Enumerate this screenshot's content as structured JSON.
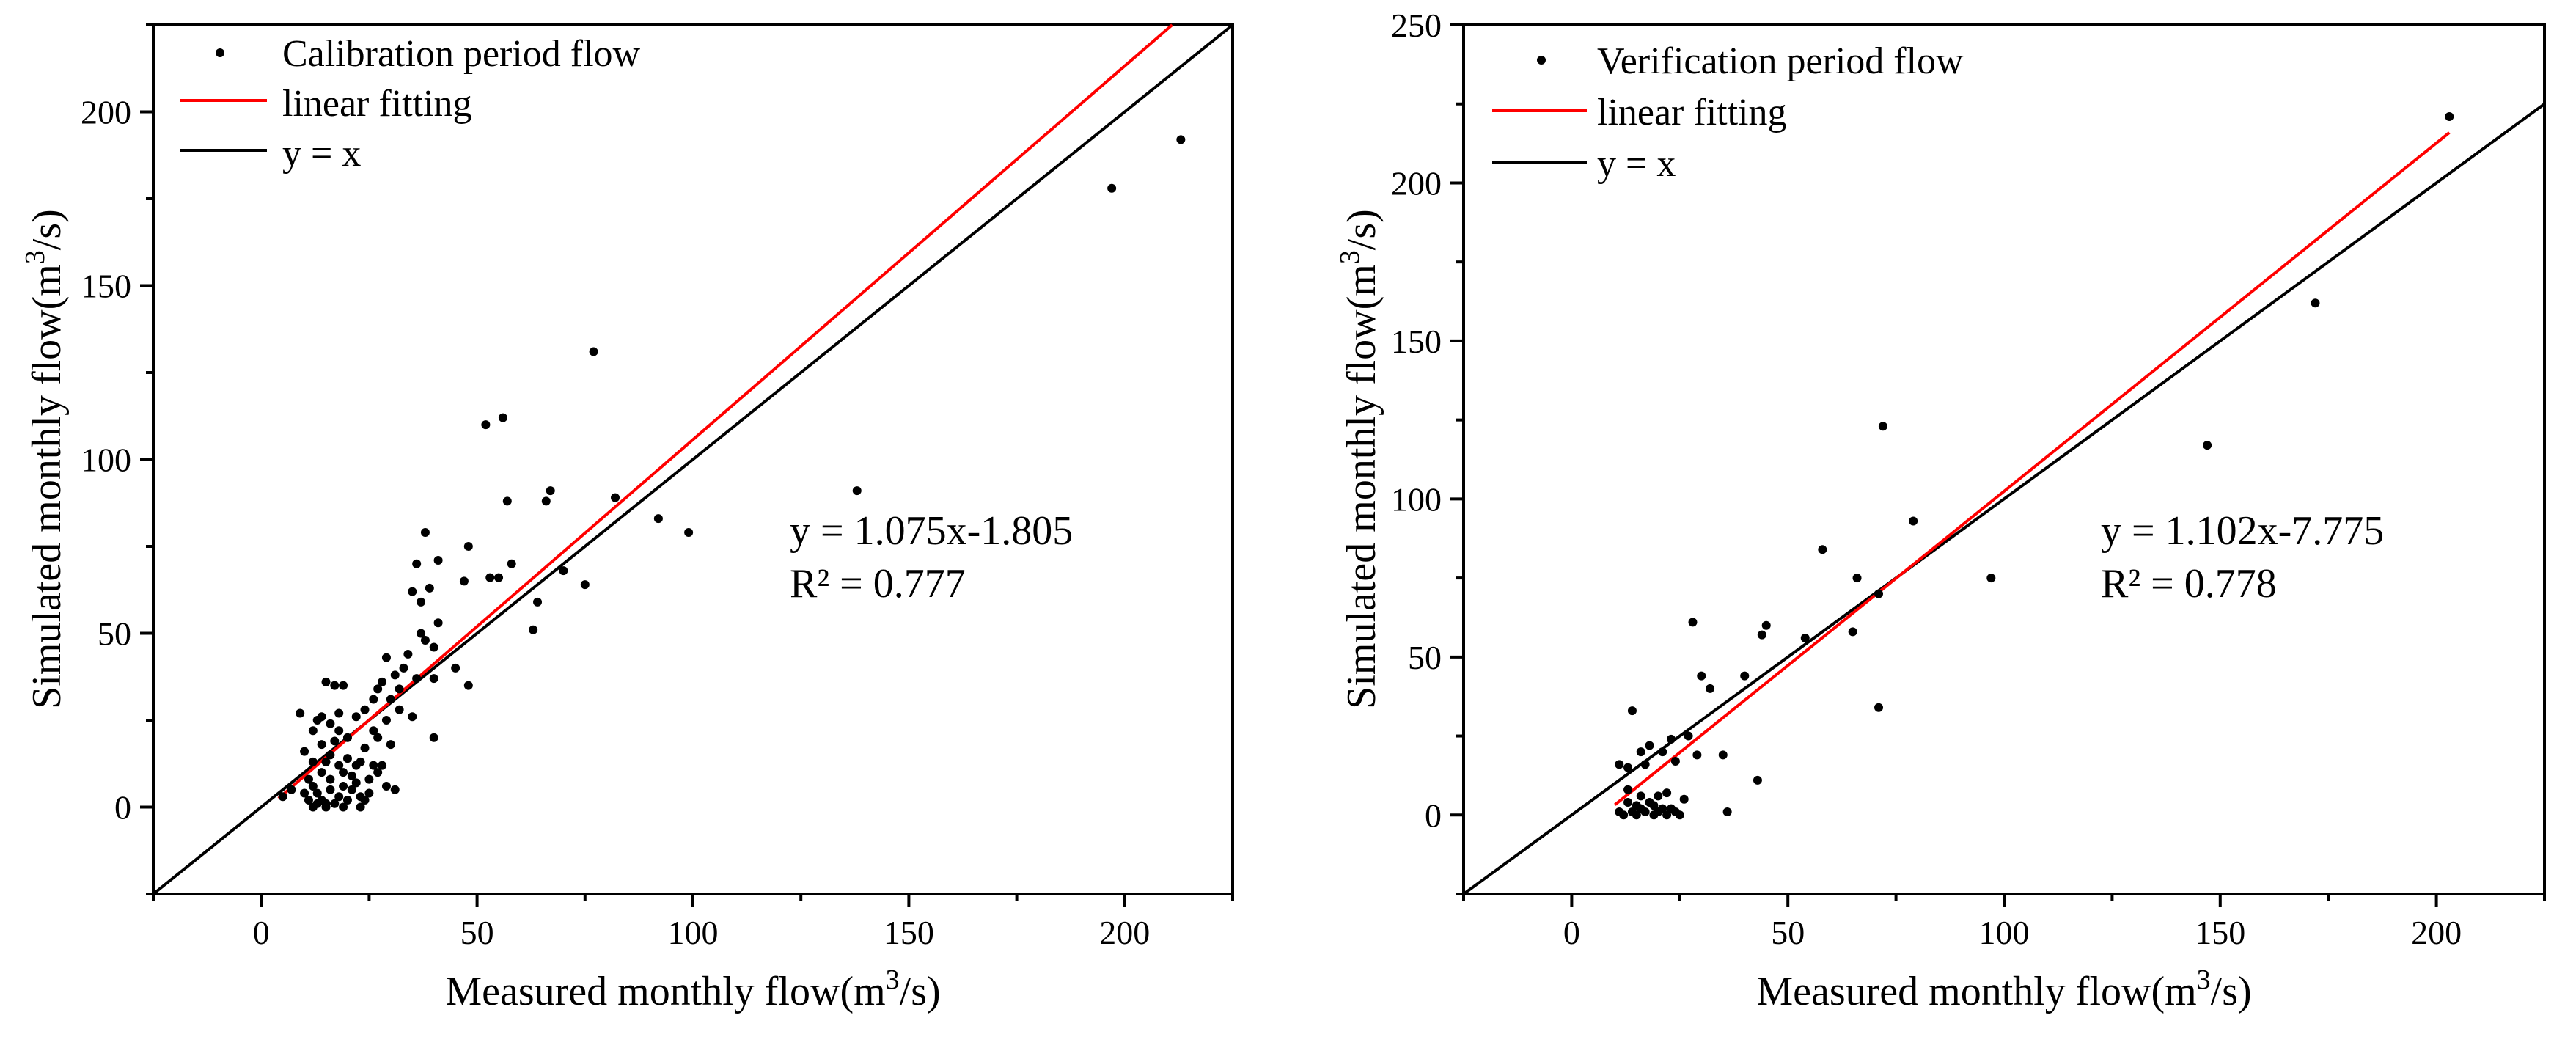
{
  "chart_data": [
    {
      "type": "scatter",
      "xlabel": {
        "base": "Measured monthly flow(m",
        "sup": "3",
        "end": "/s)"
      },
      "ylabel": {
        "base": "Simulated monthly flow(m",
        "sup": "3",
        "end": "/s)"
      },
      "xlim": [
        -25,
        225
      ],
      "ylim": [
        -25,
        225
      ],
      "xticks": [
        0,
        50,
        100,
        150,
        200
      ],
      "yticks": [
        0,
        50,
        100,
        150,
        200
      ],
      "legend": {
        "position": "top-left",
        "entries": [
          "Calibration period flow",
          "linear fitting",
          "y = x"
        ]
      },
      "fit": {
        "slope": 1.075,
        "intercept": -1.805,
        "x_range": [
          4,
          225
        ],
        "color": "#ff0000"
      },
      "identity": {
        "color": "#000000"
      },
      "annotation": {
        "equation": "y = 1.075x-1.805",
        "r2": "R² = 0.777"
      },
      "points": [
        [
          5,
          3
        ],
        [
          7,
          5
        ],
        [
          9,
          27
        ],
        [
          10,
          16
        ],
        [
          10,
          4
        ],
        [
          11,
          2
        ],
        [
          11,
          8
        ],
        [
          12,
          0
        ],
        [
          12,
          13
        ],
        [
          12,
          22
        ],
        [
          13,
          1
        ],
        [
          13,
          4
        ],
        [
          13,
          25
        ],
        [
          14,
          2
        ],
        [
          14,
          10
        ],
        [
          14,
          18
        ],
        [
          15,
          0
        ],
        [
          15,
          13
        ],
        [
          15,
          36
        ],
        [
          15,
          1
        ],
        [
          16,
          5
        ],
        [
          16,
          8
        ],
        [
          16,
          15
        ],
        [
          16,
          24
        ],
        [
          17,
          1
        ],
        [
          17,
          19
        ],
        [
          17,
          35
        ],
        [
          18,
          3
        ],
        [
          18,
          12
        ],
        [
          18,
          27
        ],
        [
          19,
          0
        ],
        [
          19,
          6
        ],
        [
          19,
          10
        ],
        [
          19,
          35
        ],
        [
          20,
          2
        ],
        [
          20,
          14
        ],
        [
          20,
          20
        ],
        [
          21,
          5
        ],
        [
          21,
          9
        ],
        [
          22,
          12
        ],
        [
          22,
          26
        ],
        [
          23,
          0
        ],
        [
          23,
          3
        ],
        [
          23,
          13
        ],
        [
          24,
          2
        ],
        [
          24,
          17
        ],
        [
          24,
          28
        ],
        [
          25,
          4
        ],
        [
          25,
          8
        ],
        [
          26,
          12
        ],
        [
          26,
          22
        ],
        [
          26,
          31
        ],
        [
          27,
          20
        ],
        [
          27,
          34
        ],
        [
          28,
          12
        ],
        [
          28,
          36
        ],
        [
          29,
          25
        ],
        [
          29,
          43
        ],
        [
          30,
          18
        ],
        [
          30,
          31
        ],
        [
          31,
          5
        ],
        [
          31,
          38
        ],
        [
          32,
          34
        ],
        [
          32,
          28
        ],
        [
          33,
          40
        ],
        [
          34,
          44
        ],
        [
          35,
          26
        ],
        [
          35,
          62
        ],
        [
          36,
          70
        ],
        [
          36,
          37
        ],
        [
          37,
          59
        ],
        [
          37,
          50
        ],
        [
          38,
          79
        ],
        [
          38,
          48
        ],
        [
          39,
          63
        ],
        [
          40,
          46
        ],
        [
          40,
          37
        ],
        [
          40,
          20
        ],
        [
          41,
          71
        ],
        [
          41,
          53
        ],
        [
          12,
          6
        ],
        [
          14,
          26
        ],
        [
          18,
          22
        ],
        [
          22,
          7
        ],
        [
          27,
          10
        ],
        [
          29,
          6
        ],
        [
          45,
          40
        ],
        [
          47,
          65
        ],
        [
          48,
          75
        ],
        [
          48,
          35
        ],
        [
          52,
          110
        ],
        [
          53,
          66
        ],
        [
          55,
          66
        ],
        [
          56,
          112
        ],
        [
          57,
          88
        ],
        [
          58,
          70
        ],
        [
          63,
          51
        ],
        [
          64,
          59
        ],
        [
          66,
          88
        ],
        [
          67,
          91
        ],
        [
          70,
          68
        ],
        [
          75,
          64
        ],
        [
          77,
          131
        ],
        [
          82,
          89
        ],
        [
          92,
          83
        ],
        [
          99,
          79
        ],
        [
          138,
          91
        ],
        [
          197,
          178
        ],
        [
          213,
          192
        ]
      ]
    },
    {
      "type": "scatter",
      "xlabel": {
        "base": "Measured monthly flow(m",
        "sup": "3",
        "end": "/s)"
      },
      "ylabel": {
        "base": "Simulated monthly flow(m",
        "sup": "3",
        "end": "/s)"
      },
      "xlim": [
        -25,
        225
      ],
      "ylim": [
        -25,
        250
      ],
      "xticks": [
        0,
        50,
        100,
        150,
        200
      ],
      "yticks": [
        0,
        50,
        100,
        150,
        200,
        250
      ],
      "legend": {
        "position": "top-left",
        "entries": [
          "Verification period flow",
          "linear fitting",
          "y = x"
        ]
      },
      "fit": {
        "slope": 1.102,
        "intercept": -7.775,
        "x_range": [
          10,
          203
        ],
        "color": "#ff0000"
      },
      "identity": {
        "color": "#000000"
      },
      "annotation": {
        "equation": "y = 1.102x-7.775",
        "r2": "R² = 0.778"
      },
      "points": [
        [
          11,
          16
        ],
        [
          11,
          1
        ],
        [
          12,
          0
        ],
        [
          13,
          15
        ],
        [
          13,
          4
        ],
        [
          13,
          8
        ],
        [
          14,
          33
        ],
        [
          14,
          1
        ],
        [
          15,
          3
        ],
        [
          15,
          0
        ],
        [
          16,
          20
        ],
        [
          16,
          6
        ],
        [
          16,
          2
        ],
        [
          17,
          16
        ],
        [
          17,
          1
        ],
        [
          18,
          4
        ],
        [
          18,
          22
        ],
        [
          19,
          0
        ],
        [
          19,
          3
        ],
        [
          20,
          6
        ],
        [
          20,
          1
        ],
        [
          21,
          2
        ],
        [
          21,
          20
        ],
        [
          22,
          0
        ],
        [
          22,
          7
        ],
        [
          23,
          24
        ],
        [
          23,
          2
        ],
        [
          24,
          17
        ],
        [
          24,
          1
        ],
        [
          25,
          0
        ],
        [
          26,
          5
        ],
        [
          27,
          25
        ],
        [
          28,
          61
        ],
        [
          29,
          19
        ],
        [
          30,
          44
        ],
        [
          32,
          40
        ],
        [
          35,
          19
        ],
        [
          36,
          1
        ],
        [
          40,
          44
        ],
        [
          43,
          11
        ],
        [
          44,
          57
        ],
        [
          45,
          60
        ],
        [
          54,
          56
        ],
        [
          58,
          84
        ],
        [
          65,
          58
        ],
        [
          66,
          75
        ],
        [
          71,
          70
        ],
        [
          71,
          34
        ],
        [
          72,
          123
        ],
        [
          79,
          93
        ],
        [
          97,
          75
        ],
        [
          147,
          117
        ],
        [
          172,
          162
        ],
        [
          203,
          221
        ]
      ]
    }
  ]
}
